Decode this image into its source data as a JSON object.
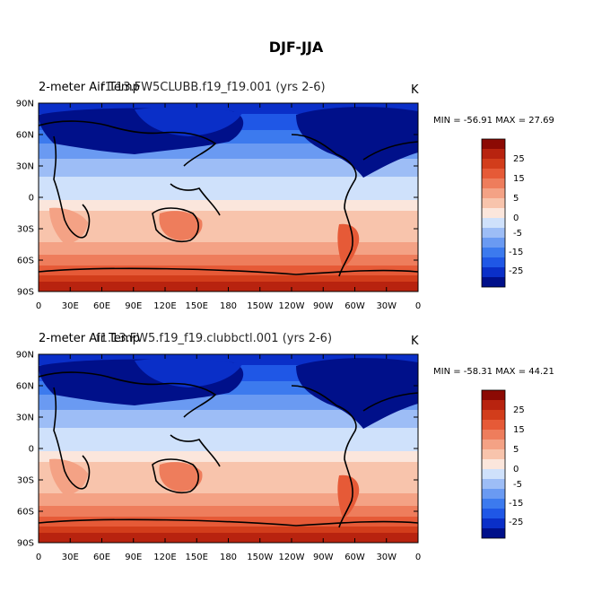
{
  "title": "DJF-JJA",
  "units": "K",
  "lat_labels": [
    "90N",
    "60N",
    "30N",
    "0",
    "30S",
    "60S",
    "90S"
  ],
  "lon_labels": [
    "0",
    "30E",
    "60E",
    "90E",
    "120E",
    "150E",
    "180",
    "150W",
    "120W",
    "90W",
    "60W",
    "30W",
    "0"
  ],
  "colorbar_labels": [
    "25",
    "15",
    "5",
    "0",
    "-5",
    "-15",
    "-25"
  ],
  "colors": {
    "c0": "#00108a",
    "c1": "#0a2fc8",
    "c2": "#1f57e6",
    "c3": "#3c7aee",
    "c4": "#6a9af2",
    "c5": "#9dbdf6",
    "c6": "#cfe1fb",
    "c7": "#fbe6dc",
    "c8": "#f8c4ac",
    "c9": "#f4a285",
    "c10": "#ee7d5c",
    "c11": "#e65a37",
    "c12": "#d23d1b",
    "c13": "#b8230f",
    "c14": "#8c0a04"
  },
  "panels": [
    {
      "name": "top",
      "variable_label": "2-meter Air Temp",
      "case_label": "f1.13.FW5CLUBB.f19_f19.001 (yrs 2-6)",
      "min_max": "MIN = -56.91 MAX =  27.69"
    },
    {
      "name": "bottom",
      "variable_label": "2-meter Air Temp",
      "case_label": "f1.13.FW5.f19_f19.clubbctl.001 (yrs 2-6)",
      "min_max": "MIN = -58.31 MAX =  44.21"
    }
  ]
}
